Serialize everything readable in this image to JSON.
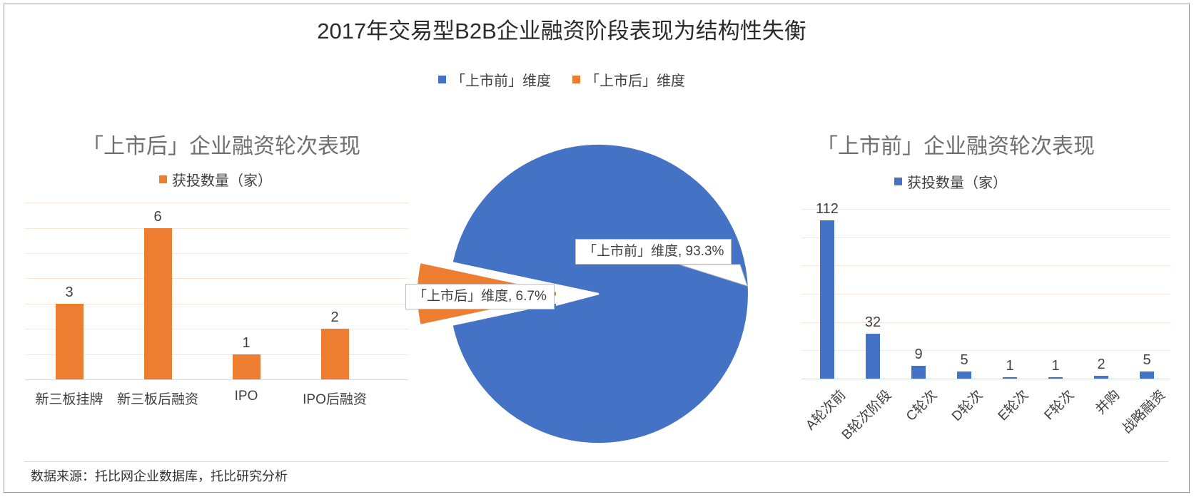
{
  "page": {
    "title": "2017年交易型B2B企业融资阶段表现为结构性失衡",
    "source_note": "数据来源：托比网企业数据库，托比研究分析"
  },
  "colors": {
    "blue": "#4472c4",
    "orange": "#ed7d31",
    "gridline": "#fbe5d6",
    "axis": "#d9d9d9",
    "label_text": "#404040"
  },
  "legend": {
    "items": [
      {
        "label": "「上市前」维度",
        "color": "#4472c4"
      },
      {
        "label": "「上市后」维度",
        "color": "#ed7d31"
      }
    ]
  },
  "chart_data": [
    {
      "type": "bar",
      "title": "「上市后」企业融资轮次表现",
      "legend": "获投数量（家）",
      "series_color": "#ed7d31",
      "categories": [
        "新三板挂牌",
        "新三板后融资",
        "IPO",
        "IPO后融资"
      ],
      "values": [
        3,
        6,
        1,
        2
      ],
      "ylim": [
        0,
        7
      ],
      "grid_step": 1,
      "grid": "on",
      "legend_position": "top"
    },
    {
      "type": "pie",
      "labels": [
        "「上市前」维度",
        "「上市后」维度"
      ],
      "values": [
        93.3,
        6.7
      ],
      "callouts": [
        "「上市前」维度, 93.3%",
        "「上市后」维度, 6.7%"
      ],
      "exploded_slice": "「上市后」维度"
    },
    {
      "type": "bar",
      "title": "「上市前」企业融资轮次表现",
      "legend": "获投数量（家）",
      "series_color": "#4472c4",
      "categories": [
        "A轮次前",
        "B轮次阶段",
        "C轮次",
        "D轮次",
        "E轮次",
        "F轮次",
        "并购",
        "战略融资"
      ],
      "values": [
        112,
        32,
        9,
        5,
        1,
        1,
        2,
        5
      ],
      "ylim": [
        0,
        120
      ],
      "grid_step": 20,
      "grid": "on",
      "legend_position": "top"
    }
  ]
}
